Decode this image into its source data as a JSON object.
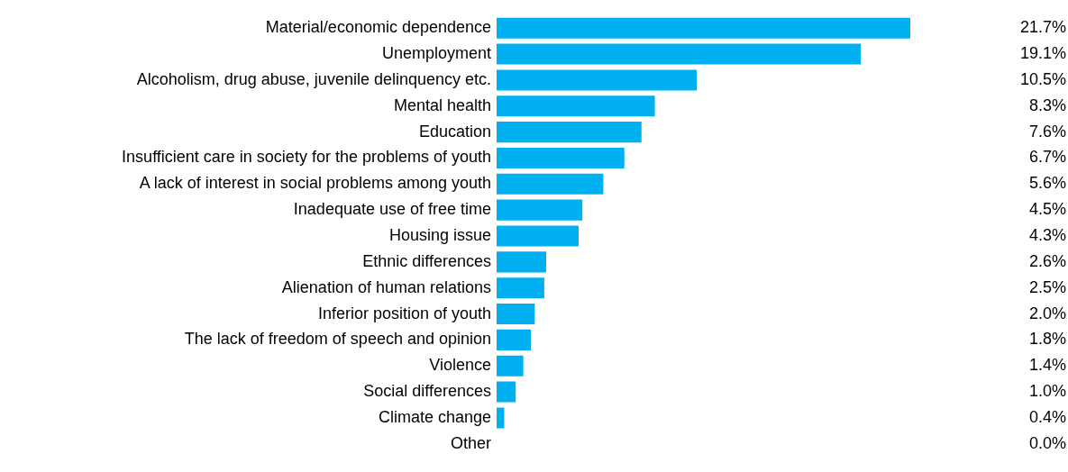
{
  "chart_data": {
    "type": "bar",
    "orientation": "horizontal",
    "data_labels": true,
    "categories": [
      "Material/economic dependence",
      "Unemployment",
      "Alcoholism, drug abuse, juvenile delinquency etc.",
      "Mental health",
      "Education",
      "Insufficient care in society for the problems of youth",
      "A lack of interest in social problems among youth",
      "Inadequate use of free time",
      "Housing issue",
      "Ethnic differences",
      "Alienation of human relations",
      "Inferior position of youth",
      "The lack of freedom of speech and opinion",
      "Violence",
      "Social differences",
      "Climate change",
      "Other"
    ],
    "values": [
      21.7,
      19.1,
      10.5,
      8.3,
      7.6,
      6.7,
      5.6,
      4.5,
      4.3,
      2.6,
      2.5,
      2.0,
      1.8,
      1.4,
      1.0,
      0.4,
      0.0
    ],
    "value_labels": [
      "21.7%",
      "19.1%",
      "10.5%",
      "8.3%",
      "7.6%",
      "6.7%",
      "5.6%",
      "4.5%",
      "4.3%",
      "2.6%",
      "2.5%",
      "2.0%",
      "1.8%",
      "1.4%",
      "1.0%",
      "0.4%",
      "0.0%"
    ],
    "color": "#00b0f0",
    "legend": false
  }
}
